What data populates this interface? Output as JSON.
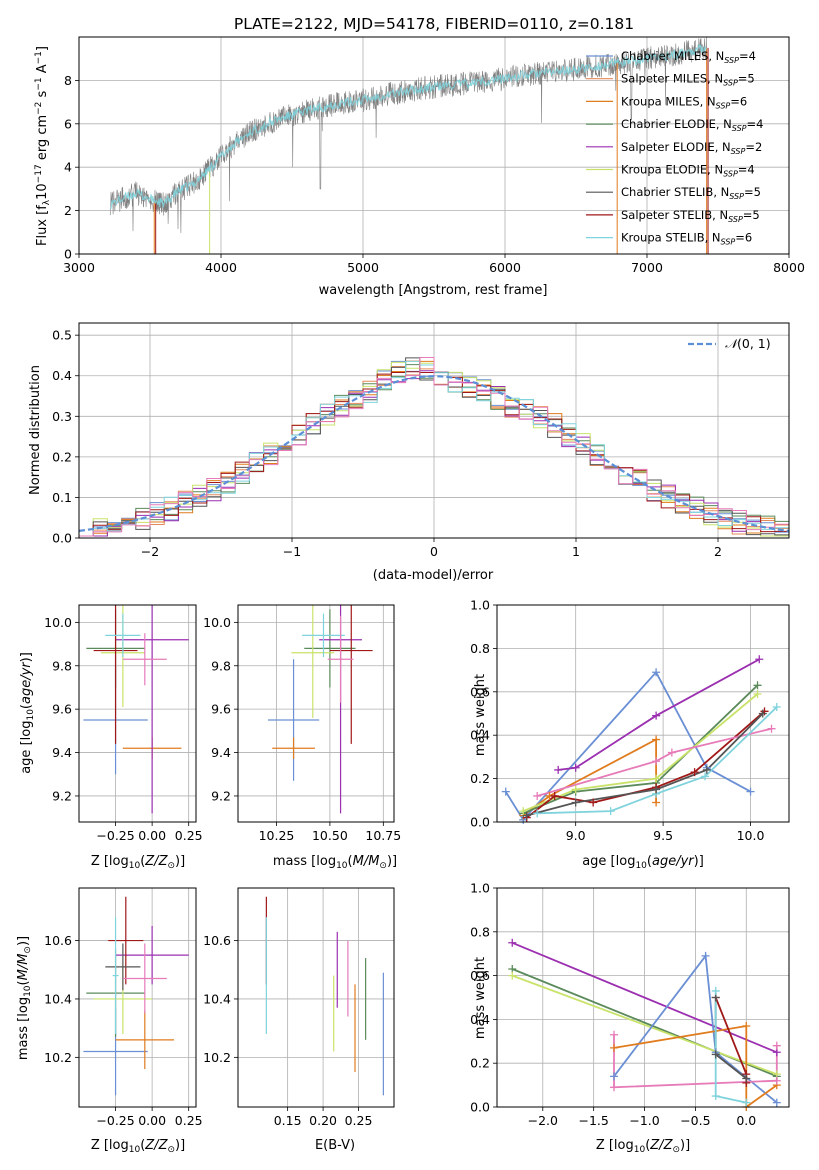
{
  "figure_title": "PLATE=2122, MJD=54178, FIBERID=0110, z=0.181",
  "colors": {
    "Chabrier MILES": "#6a8fd4",
    "Salpeter MILES": "#e58a5b",
    "Kroupa MILES": "#e07b1e",
    "Chabrier ELODIE": "#5b8a5b",
    "Salpeter ELODIE": "#9b2fb0",
    "Kroupa ELODIE": "#c9e36a",
    "Chabrier STELIB": "#555555",
    "Salpeter STELIB": "#a01818",
    "Kroupa STELIB": "#7ed3dc",
    "pink": "#e67bb8",
    "normal": "#5b8fd6",
    "spectrum": "#808080"
  },
  "chart_data": [
    {
      "type": "line",
      "panel": "spectrum",
      "xlabel": "wavelength [Angstrom, rest frame]",
      "ylabel": "Flux [fλ10⁻¹⁷ erg cm⁻² s⁻¹ A⁻¹]",
      "xlim": [
        3000,
        8000
      ],
      "ylim": [
        0,
        10
      ],
      "xticks": [
        "3000",
        "4000",
        "5000",
        "6000",
        "7000",
        "8000"
      ],
      "yticks": [
        "0",
        "2",
        "4",
        "6",
        "8"
      ],
      "legend": [
        {
          "label": "Chabrier MILES, N_SSP=4",
          "color": "#6a8fd4"
        },
        {
          "label": "Salpeter MILES, N_SSP=5",
          "color": "#e58a5b"
        },
        {
          "label": "Kroupa MILES, N_SSP=6",
          "color": "#e07b1e"
        },
        {
          "label": "Chabrier ELODIE, N_SSP=4",
          "color": "#5b8a5b"
        },
        {
          "label": "Salpeter ELODIE, N_SSP=2",
          "color": "#9b2fb0"
        },
        {
          "label": "Kroupa ELODIE, N_SSP=4",
          "color": "#c9e36a"
        },
        {
          "label": "Chabrier STELIB, N_SSP=5",
          "color": "#555555"
        },
        {
          "label": "Salpeter STELIB, N_SSP=5",
          "color": "#a01818"
        },
        {
          "label": "Kroupa STELIB, N_SSP=6",
          "color": "#7ed3dc"
        }
      ],
      "legend_items": [
        {
          "prefix": "Chabrier MILES, N",
          "value": "=4"
        },
        {
          "prefix": "Salpeter MILES, N",
          "value": "=5"
        },
        {
          "prefix": "Kroupa MILES, N",
          "value": "=6"
        },
        {
          "prefix": "Chabrier ELODIE, N",
          "value": "=4"
        },
        {
          "prefix": "Salpeter ELODIE, N",
          "value": "=2"
        },
        {
          "prefix": "Kroupa ELODIE, N",
          "value": "=4"
        },
        {
          "prefix": "Chabrier STELIB, N",
          "value": "=5"
        },
        {
          "prefix": "Salpeter STELIB, N",
          "value": "=5"
        },
        {
          "prefix": "Kroupa STELIB, N",
          "value": "=6"
        }
      ],
      "ssp_subscript": "SSP",
      "continuum": {
        "wavelength": [
          3220,
          3400,
          3600,
          3700,
          3800,
          3900,
          4000,
          4100,
          4200,
          4400,
          4600,
          4800,
          5000,
          5200,
          5500,
          5800,
          6000,
          6200,
          6500,
          6800,
          7000,
          7200,
          7400
        ],
        "flux": [
          2.3,
          2.8,
          2.3,
          2.9,
          3.2,
          3.8,
          4.5,
          5.1,
          5.6,
          6.2,
          6.6,
          6.9,
          7.1,
          7.4,
          7.7,
          7.9,
          8.1,
          8.3,
          8.5,
          8.8,
          9.0,
          9.2,
          9.5
        ]
      }
    },
    {
      "type": "line",
      "panel": "residuals",
      "xlabel": "(data-model)/error",
      "ylabel": "Normed distribution",
      "xlim": [
        -2.5,
        2.5
      ],
      "ylim": [
        0,
        0.53
      ],
      "xticks": [
        "−2",
        "−1",
        "0",
        "1",
        "2"
      ],
      "yticks": [
        "0.0",
        "0.1",
        "0.2",
        "0.3",
        "0.4",
        "0.5"
      ],
      "grid": true,
      "legend": [
        {
          "label": "N(0,1)",
          "style": "dashed"
        }
      ],
      "legend_label": "(0, 1)",
      "legend_symbol": "𝒩"
    },
    {
      "type": "scatter",
      "panel": "Z-age",
      "xlabel": "Z [log10(Z/Z☉)]",
      "ylabel": "age [log10(age/yr)]",
      "xlim": [
        -0.5,
        0.3
      ],
      "ylim": [
        9.08,
        10.08
      ],
      "xticks": [
        "−0.25",
        "0.00",
        "0.25"
      ],
      "yticks": [
        "9.2",
        "9.4",
        "9.6",
        "9.8",
        "10.0"
      ],
      "points": [
        {
          "series": "Chabrier MILES",
          "x": -0.25,
          "y": 9.55,
          "xerr": 0.22,
          "yerr": 0.25
        },
        {
          "series": "Kroupa MILES",
          "x": 0.0,
          "y": 9.42,
          "xerr": 0.2,
          "yerr": 0.05
        },
        {
          "series": "Chabrier ELODIE",
          "x": -0.25,
          "y": 9.88,
          "xerr": 0.2,
          "yerr": 0.18
        },
        {
          "series": "Salpeter ELODIE",
          "x": 0.0,
          "y": 9.92,
          "xerr": 0.25,
          "yerr": 0.8
        },
        {
          "series": "Kroupa ELODIE",
          "x": -0.2,
          "y": 9.86,
          "xerr": 0.15,
          "yerr": 0.25
        },
        {
          "series": "Salpeter STELIB",
          "x": -0.25,
          "y": 9.87,
          "xerr": 0.15,
          "yerr": 0.43
        },
        {
          "series": "Kroupa STELIB",
          "x": -0.2,
          "y": 9.94,
          "xerr": 0.12,
          "yerr": 0.1
        },
        {
          "series": "pink",
          "x": -0.05,
          "y": 9.83,
          "xerr": 0.15,
          "yerr": 0.12
        }
      ]
    },
    {
      "type": "scatter",
      "panel": "mass-age",
      "xlabel": "mass [log10(M/M☉)]",
      "ylabel": "",
      "xlim": [
        10.07,
        10.8
      ],
      "ylim": [
        9.08,
        10.08
      ],
      "xticks": [
        "10.25",
        "10.50",
        "10.75"
      ],
      "yticks": [
        "9.2",
        "9.4",
        "9.6",
        "9.8",
        "10.0"
      ],
      "points": [
        {
          "series": "Chabrier MILES",
          "x": 10.33,
          "y": 9.55,
          "xerr": 0.12,
          "yerr": 0.28
        },
        {
          "series": "Kroupa MILES",
          "x": 10.33,
          "y": 9.42,
          "xerr": 0.1,
          "yerr": 0.05
        },
        {
          "series": "Chabrier ELODIE",
          "x": 10.5,
          "y": 9.88,
          "xerr": 0.12,
          "yerr": 0.18
        },
        {
          "series": "Salpeter ELODIE",
          "x": 10.55,
          "y": 9.92,
          "xerr": 0.1,
          "yerr": 0.8
        },
        {
          "series": "Kroupa ELODIE",
          "x": 10.42,
          "y": 9.86,
          "xerr": 0.1,
          "yerr": 0.3
        },
        {
          "series": "Salpeter STELIB",
          "x": 10.6,
          "y": 9.87,
          "xerr": 0.1,
          "yerr": 0.43
        },
        {
          "series": "Kroupa STELIB",
          "x": 10.47,
          "y": 9.94,
          "xerr": 0.1,
          "yerr": 0.1
        },
        {
          "series": "pink",
          "x": 10.55,
          "y": 9.83,
          "xerr": 0.06,
          "yerr": 0.2
        }
      ]
    },
    {
      "type": "line",
      "panel": "age-weight",
      "xlabel": "age [log10(age/yr)]",
      "ylabel": "mass weight",
      "xlim": [
        8.55,
        10.22
      ],
      "ylim": [
        0,
        1.0
      ],
      "xticks": [
        "9.0",
        "9.5",
        "10.0"
      ],
      "yticks": [
        "0.0",
        "0.2",
        "0.4",
        "0.6",
        "0.8",
        "1.0"
      ],
      "grid": true,
      "series": [
        {
          "name": "Chabrier MILES",
          "x": [
            8.6,
            8.7,
            9.46,
            9.75,
            10.0
          ],
          "y": [
            0.14,
            0.01,
            0.69,
            0.25,
            0.14
          ]
        },
        {
          "name": "Salpeter ELODIE",
          "x": [
            8.9,
            9.0,
            9.46,
            10.05
          ],
          "y": [
            0.24,
            0.25,
            0.49,
            0.75
          ]
        },
        {
          "name": "Kroupa MILES",
          "x": [
            8.7,
            8.85,
            9.46,
            9.46
          ],
          "y": [
            0.03,
            0.12,
            0.38,
            0.09
          ]
        },
        {
          "name": "Chabrier ELODIE",
          "x": [
            8.7,
            9.0,
            9.46,
            10.04
          ],
          "y": [
            0.04,
            0.14,
            0.18,
            0.63
          ]
        },
        {
          "name": "Kroupa ELODIE",
          "x": [
            8.7,
            9.0,
            9.46,
            10.04
          ],
          "y": [
            0.05,
            0.15,
            0.2,
            0.59
          ]
        },
        {
          "name": "Salpeter STELIB",
          "x": [
            8.72,
            8.88,
            9.1,
            9.46,
            9.68,
            10.08
          ],
          "y": [
            0.02,
            0.12,
            0.09,
            0.16,
            0.23,
            0.51
          ]
        },
        {
          "name": "pink",
          "x": [
            8.78,
            9.46,
            9.55,
            10.12
          ],
          "y": [
            0.12,
            0.28,
            0.32,
            0.43
          ]
        },
        {
          "name": "Kroupa STELIB",
          "x": [
            8.78,
            9.2,
            9.46,
            9.74,
            10.15
          ],
          "y": [
            0.04,
            0.05,
            0.13,
            0.21,
            0.53
          ]
        },
        {
          "name": "Chabrier STELIB",
          "x": [
            8.72,
            9.0,
            9.46,
            9.75,
            10.07
          ],
          "y": [
            0.03,
            0.09,
            0.15,
            0.24,
            0.5
          ]
        }
      ]
    },
    {
      "type": "scatter",
      "panel": "Z-mass",
      "xlabel": "Z [log10(Z/Z☉)]",
      "ylabel": "mass [log10(M/M☉)]",
      "xlim": [
        -0.5,
        0.3
      ],
      "ylim": [
        10.03,
        10.78
      ],
      "xticks": [
        "−0.25",
        "0.00",
        "0.25"
      ],
      "yticks": [
        "10.2",
        "10.4",
        "10.6"
      ],
      "points": [
        {
          "series": "Chabrier MILES",
          "x": -0.25,
          "y": 10.22,
          "xerr": 0.22,
          "yerr": 0.15
        },
        {
          "series": "Kroupa MILES",
          "x": -0.05,
          "y": 10.26,
          "xerr": 0.2,
          "yerr": 0.1
        },
        {
          "series": "Chabrier ELODIE",
          "x": -0.25,
          "y": 10.42,
          "xerr": 0.2,
          "yerr": 0.15
        },
        {
          "series": "Salpeter ELODIE",
          "x": 0.0,
          "y": 10.55,
          "xerr": 0.25,
          "yerr": 0.1
        },
        {
          "series": "Kroupa ELODIE",
          "x": -0.2,
          "y": 10.4,
          "xerr": 0.2,
          "yerr": 0.12
        },
        {
          "series": "Salpeter STELIB",
          "x": -0.18,
          "y": 10.6,
          "xerr": 0.12,
          "yerr": 0.15
        },
        {
          "series": "Chabrier STELIB",
          "x": -0.2,
          "y": 10.51,
          "xerr": 0.12,
          "yerr": 0.08
        },
        {
          "series": "pink",
          "x": -0.05,
          "y": 10.47,
          "xerr": 0.15,
          "yerr": 0.12
        },
        {
          "series": "Kroupa STELIB",
          "x": -0.25,
          "y": 10.48,
          "xerr": 0.02,
          "yerr": 0.2
        }
      ]
    },
    {
      "type": "scatter",
      "panel": "EBV-mass",
      "xlabel": "E(B-V)",
      "ylabel": "",
      "xlim": [
        0.08,
        0.3
      ],
      "ylim": [
        10.03,
        10.78
      ],
      "xticks": [
        "0.15",
        "0.20",
        "0.25"
      ],
      "yticks": [
        "10.2",
        "10.4",
        "10.6"
      ],
      "points": [
        {
          "series": "Salpeter STELIB",
          "x": 0.12,
          "y": 10.6,
          "yerr": 0.15
        },
        {
          "series": "Kroupa STELIB",
          "x": 0.12,
          "y": 10.48,
          "yerr": 0.2
        },
        {
          "series": "Kroupa ELODIE",
          "x": 0.215,
          "y": 10.35,
          "yerr": 0.13
        },
        {
          "series": "Salpeter ELODIE",
          "x": 0.22,
          "y": 10.5,
          "yerr": 0.13
        },
        {
          "series": "pink",
          "x": 0.235,
          "y": 10.47,
          "yerr": 0.13
        },
        {
          "series": "Kroupa MILES",
          "x": 0.245,
          "y": 10.3,
          "yerr": 0.15
        },
        {
          "series": "Chabrier ELODIE",
          "x": 0.26,
          "y": 10.4,
          "yerr": 0.14
        },
        {
          "series": "Chabrier MILES",
          "x": 0.285,
          "y": 10.28,
          "yerr": 0.21
        }
      ]
    },
    {
      "type": "line",
      "panel": "Z-weight",
      "xlabel": "Z [log10(Z/Z☉)]",
      "ylabel": "mass weight",
      "xlim": [
        -2.45,
        0.42
      ],
      "ylim": [
        0,
        1.0
      ],
      "xticks": [
        "−2.0",
        "−1.5",
        "−1.0",
        "−0.5",
        "0.0"
      ],
      "yticks": [
        "0.0",
        "0.2",
        "0.4",
        "0.6",
        "0.8",
        "1.0"
      ],
      "grid": true,
      "series": [
        {
          "name": "Salpeter ELODIE",
          "x": [
            -2.3,
            0.3
          ],
          "y": [
            0.75,
            0.25
          ]
        },
        {
          "name": "Chabrier ELODIE",
          "x": [
            -2.3,
            0.3
          ],
          "y": [
            0.63,
            0.14
          ]
        },
        {
          "name": "Kroupa ELODIE",
          "x": [
            -2.3,
            0.3
          ],
          "y": [
            0.6,
            0.15
          ]
        },
        {
          "name": "Chabrier MILES",
          "x": [
            -1.3,
            -0.4,
            -0.3,
            0.3
          ],
          "y": [
            0.14,
            0.69,
            0.25,
            0.02
          ]
        },
        {
          "name": "Kroupa MILES",
          "x": [
            -1.3,
            0.0,
            0.0,
            0.3
          ],
          "y": [
            0.27,
            0.37,
            0.0,
            0.1
          ]
        },
        {
          "name": "pink",
          "x": [
            -1.3,
            -1.3,
            0.3,
            0.3
          ],
          "y": [
            0.33,
            0.09,
            0.12,
            0.28
          ]
        },
        {
          "name": "Salpeter STELIB",
          "x": [
            -0.3,
            0.0,
            0.0
          ],
          "y": [
            0.5,
            0.15,
            0.11
          ]
        },
        {
          "name": "Chabrier STELIB",
          "x": [
            -0.3,
            -0.3,
            0.0
          ],
          "y": [
            0.5,
            0.24,
            0.13
          ]
        },
        {
          "name": "Kroupa STELIB",
          "x": [
            -0.3,
            -0.3,
            0.0
          ],
          "y": [
            0.53,
            0.05,
            0.02
          ]
        }
      ]
    }
  ]
}
